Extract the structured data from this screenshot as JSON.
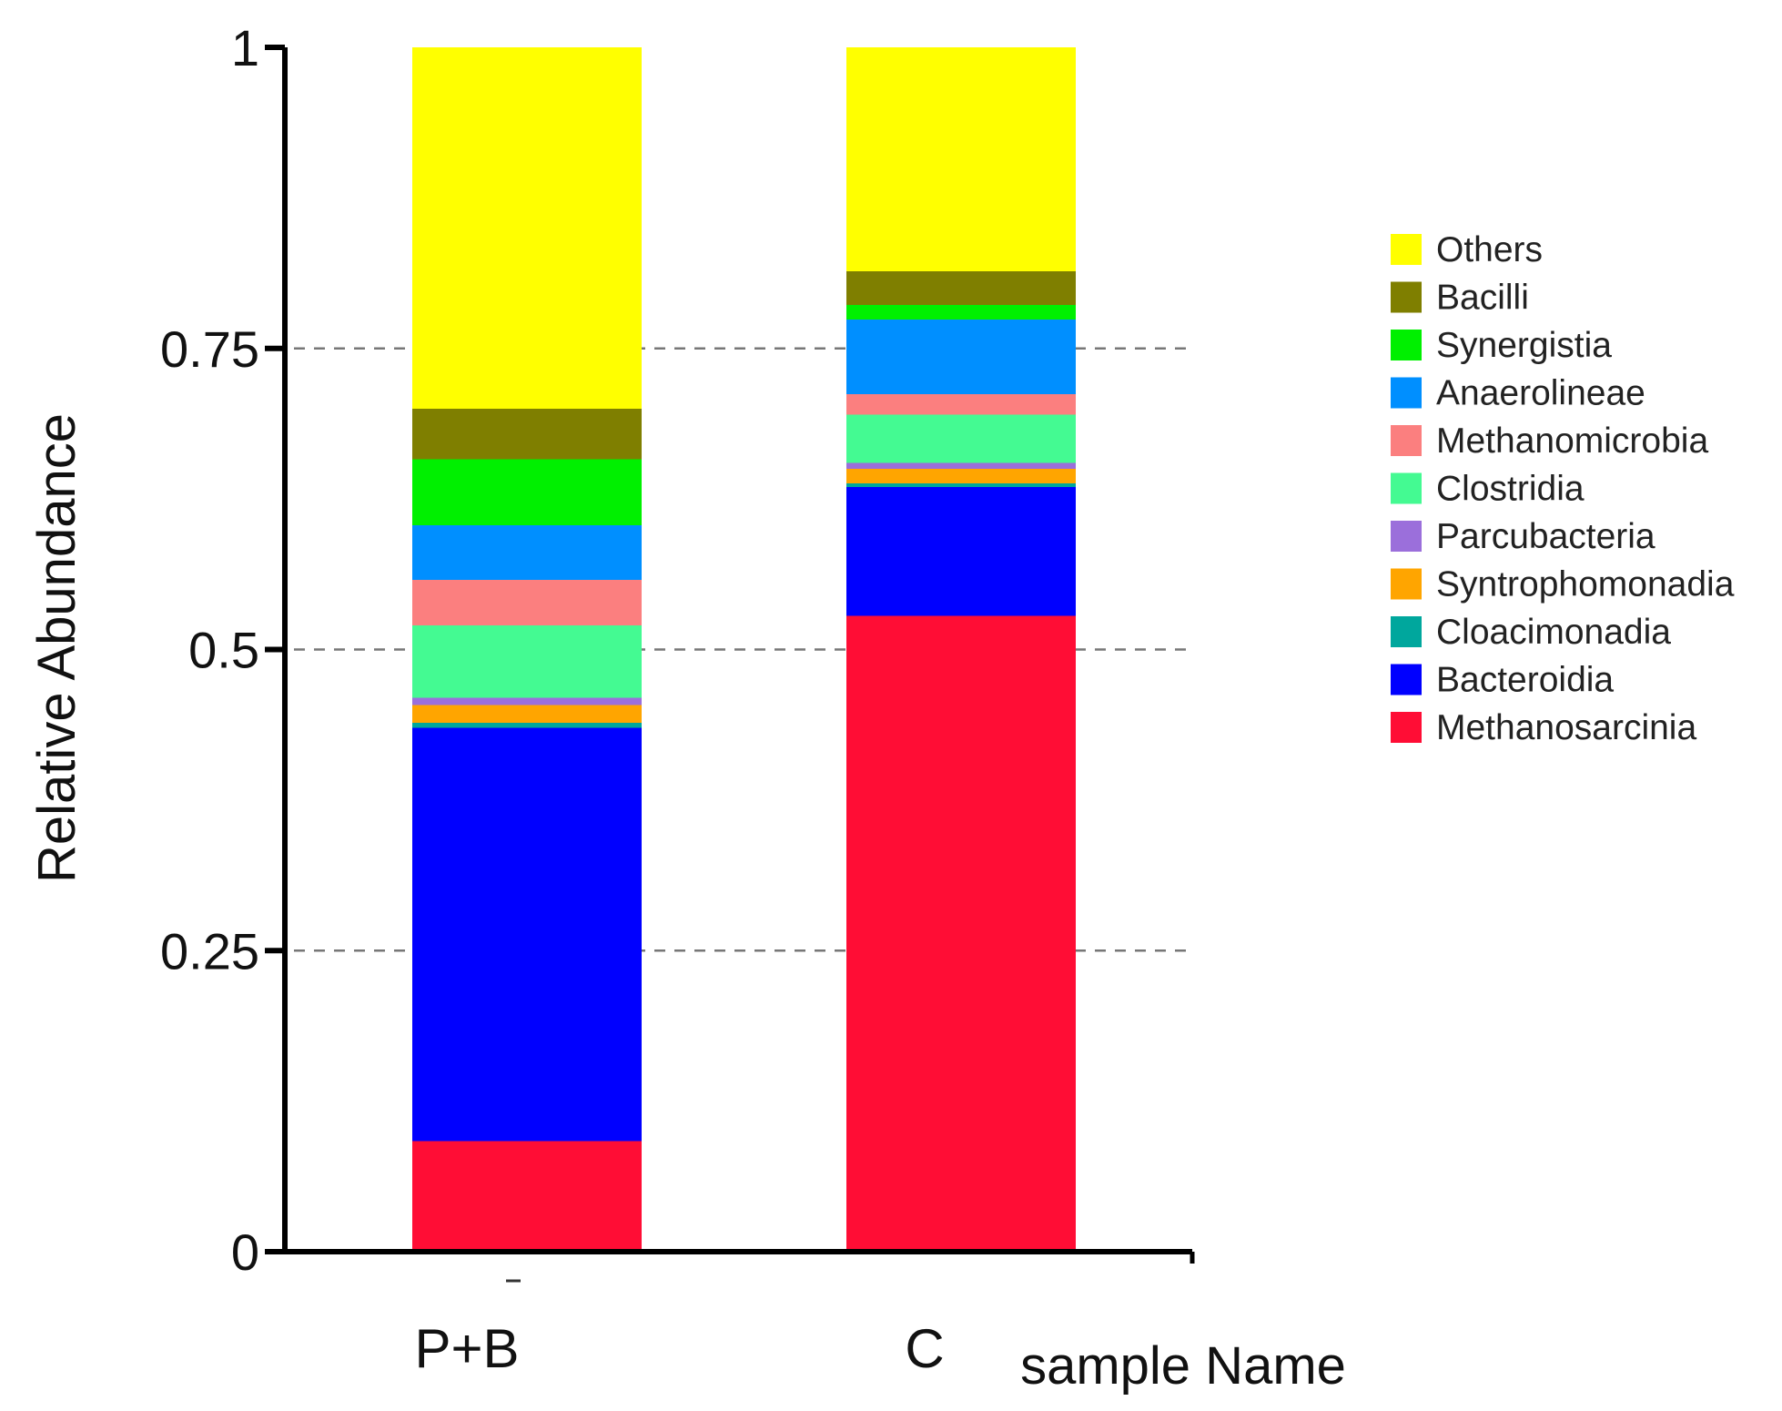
{
  "chart_data": {
    "type": "bar",
    "stacked": true,
    "categories": [
      "P+B",
      "C"
    ],
    "xlabel": "sample Name",
    "ylabel": "Relative Abundance",
    "ylim": [
      0,
      1
    ],
    "yticks": [
      "0",
      "0.25",
      "0.5",
      "0.75",
      "1"
    ],
    "grid": "horizontal dashed",
    "legend_position": "right",
    "series": [
      {
        "name": "Methanosarcinia",
        "color": "#FF0D35",
        "values": [
          0.092,
          0.528
        ]
      },
      {
        "name": "Bacteroidia",
        "color": "#0000FF",
        "values": [
          0.343,
          0.107
        ]
      },
      {
        "name": "Cloacimonadia",
        "color": "#00A79D",
        "values": [
          0.004,
          0.003
        ]
      },
      {
        "name": "Syntrophomonadia",
        "color": "#FFA500",
        "values": [
          0.015,
          0.012
        ]
      },
      {
        "name": "Parcubacteria",
        "color": "#9B6FDB",
        "values": [
          0.006,
          0.005
        ]
      },
      {
        "name": "Clostridia",
        "color": "#44FA92",
        "values": [
          0.06,
          0.04
        ]
      },
      {
        "name": "Methanomicrobia",
        "color": "#FB7F7F",
        "values": [
          0.038,
          0.017
        ]
      },
      {
        "name": "Anaerolineae",
        "color": "#008FFF",
        "values": [
          0.045,
          0.062
        ]
      },
      {
        "name": "Synergistia",
        "color": "#00F000",
        "values": [
          0.055,
          0.012
        ]
      },
      {
        "name": "Bacilli",
        "color": "#7F7F00",
        "values": [
          0.042,
          0.028
        ]
      },
      {
        "name": "Others",
        "color": "#FFFF00",
        "values": [
          0.3,
          0.186
        ]
      }
    ]
  }
}
